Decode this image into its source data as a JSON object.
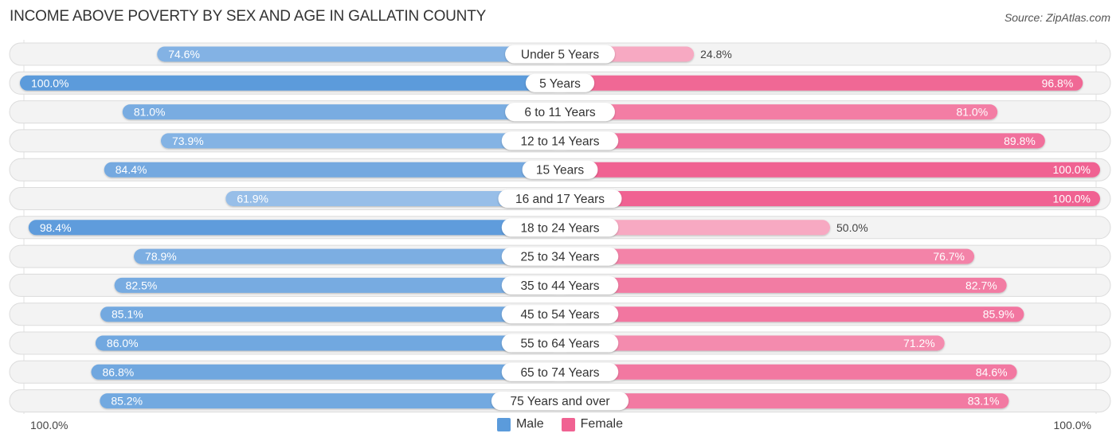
{
  "chart_data": {
    "type": "bar",
    "orientation": "horizontal-diverging",
    "title": "INCOME ABOVE POVERTY BY SEX AND AGE IN GALLATIN COUNTY",
    "source": "Source: ZipAtlas.com",
    "categories": [
      "Under 5 Years",
      "5 Years",
      "6 to 11 Years",
      "12 to 14 Years",
      "15 Years",
      "16 and 17 Years",
      "18 to 24 Years",
      "25 to 34 Years",
      "35 to 44 Years",
      "45 to 54 Years",
      "55 to 64 Years",
      "65 to 74 Years",
      "75 Years and over"
    ],
    "series": [
      {
        "name": "Male",
        "side": "left",
        "color": "#5b9bdb",
        "values": [
          74.6,
          100.0,
          81.0,
          73.9,
          84.4,
          61.9,
          98.4,
          78.9,
          82.5,
          85.1,
          86.0,
          86.8,
          85.2
        ],
        "labels": [
          "74.6%",
          "100.0%",
          "81.0%",
          "73.9%",
          "84.4%",
          "61.9%",
          "98.4%",
          "78.9%",
          "82.5%",
          "85.1%",
          "86.0%",
          "86.8%",
          "85.2%"
        ]
      },
      {
        "name": "Female",
        "side": "right",
        "color": "#f06292",
        "values": [
          24.8,
          96.8,
          81.0,
          89.8,
          100.0,
          100.0,
          50.0,
          76.7,
          82.7,
          85.9,
          71.2,
          84.6,
          83.1
        ],
        "labels": [
          "24.8%",
          "96.8%",
          "81.0%",
          "89.8%",
          "100.0%",
          "100.0%",
          "50.0%",
          "76.7%",
          "82.7%",
          "85.9%",
          "71.2%",
          "84.6%",
          "83.1%"
        ]
      }
    ],
    "xlim": [
      0,
      100
    ],
    "axis_left_label": "100.0%",
    "axis_right_label": "100.0%",
    "legend": [
      "Male",
      "Female"
    ],
    "legend_position": "bottom-center",
    "grid": false
  },
  "legend": {
    "male": "Male",
    "female": "Female"
  },
  "colors": {
    "male_strong": "#5b9bdb",
    "male_light": "#aac9ec",
    "female_strong": "#f06292",
    "female_light": "#f7a9c2",
    "track": "#f3f3f3"
  }
}
